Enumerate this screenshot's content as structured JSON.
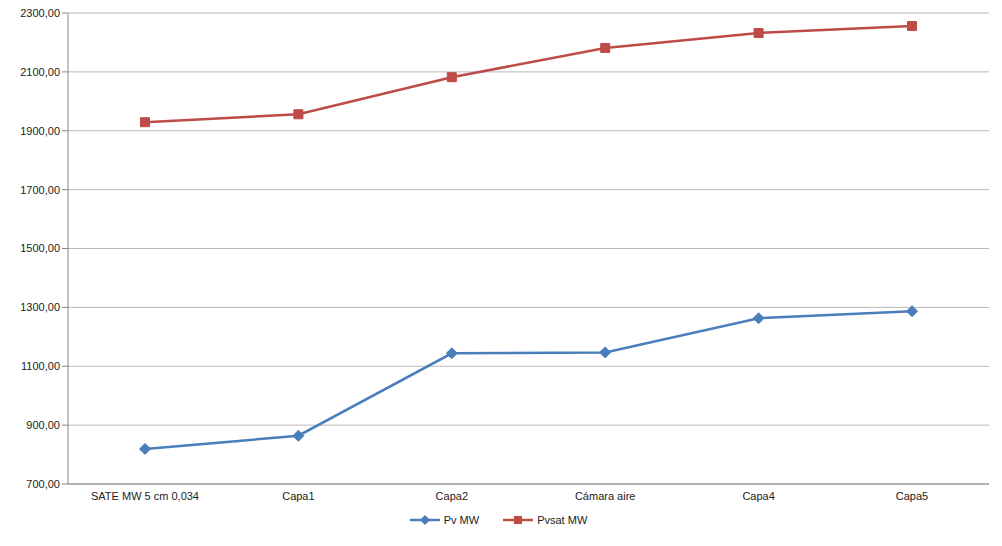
{
  "chart_data": {
    "type": "line",
    "categories": [
      "SATE MW 5 cm 0,034",
      "Capa1",
      "Capa2",
      "Cámara aire",
      "Capa4",
      "Capa5"
    ],
    "series": [
      {
        "name": "Pv MW",
        "color": "#4a7ebb",
        "marker": "diamond",
        "values": [
          819,
          864,
          1144,
          1147,
          1263,
          1287
        ]
      },
      {
        "name": "Pvsat MW",
        "color": "#be4b48",
        "marker": "square",
        "values": [
          1929,
          1956,
          2082,
          2181,
          2232,
          2256
        ]
      }
    ],
    "ylim": [
      700,
      2300
    ],
    "yticks": [
      {
        "value": 700,
        "label": "700,00"
      },
      {
        "value": 900,
        "label": "900,00"
      },
      {
        "value": 1100,
        "label": "1100,00"
      },
      {
        "value": 1300,
        "label": "1300,00"
      },
      {
        "value": 1500,
        "label": "1500,00"
      },
      {
        "value": 1700,
        "label": "1700,00"
      },
      {
        "value": 1900,
        "label": "1900,00"
      },
      {
        "value": 2100,
        "label": "2100,00"
      },
      {
        "value": 2300,
        "label": "2300,00"
      }
    ],
    "grid": true,
    "legend": "bottom"
  }
}
